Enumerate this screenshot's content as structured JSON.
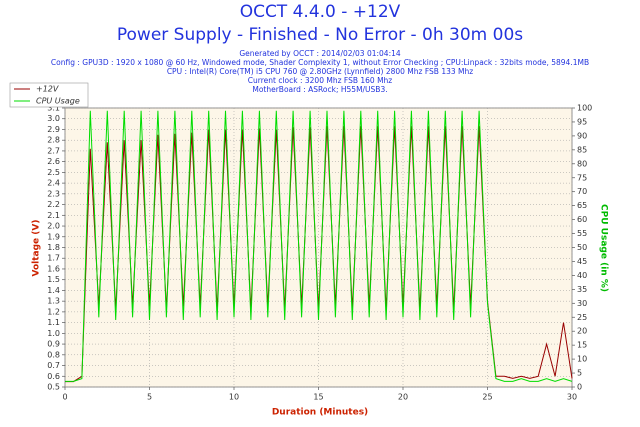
{
  "chart_data": {
    "type": "line",
    "title": "OCCT 4.4.0 - +12V",
    "subtitle": "Power Supply - Finished - No Error - 0h 30m 00s",
    "info_lines": [
      "Generated by OCCT : 2014/02/03 01:04:14",
      "Config : GPU3D : 1920 x 1080 @ 60 Hz, Windowed mode, Shader Complexity 1, without Error Checking ; CPU:Linpack : 32bits mode, 5894.1MB",
      "CPU : Intel(R) Core(TM) i5 CPU 760 @ 2.80GHz (Lynnfield) 2800 Mhz FSB 133 Mhz",
      "Current clock : 3200 Mhz FSB 160 Mhz",
      "MotherBoard : ASRock; H55M/USB3."
    ],
    "xlabel": "Duration (Minutes)",
    "ylabel": "Voltage (V)",
    "y2label": "CPU Usage (in %)",
    "x": [
      0,
      0.5,
      1,
      1.5,
      2,
      2.5,
      3,
      3.5,
      4,
      4.5,
      5,
      5.5,
      6,
      6.5,
      7,
      7.5,
      8,
      8.5,
      9,
      9.5,
      10,
      10.5,
      11,
      11.5,
      12,
      12.5,
      13,
      13.5,
      14,
      14.5,
      15,
      15.5,
      16,
      16.5,
      17,
      17.5,
      18,
      18.5,
      19,
      19.5,
      20,
      20.5,
      21,
      21.5,
      22,
      22.5,
      23,
      23.5,
      24,
      24.5,
      25,
      25.5,
      26,
      26.5,
      27,
      27.5,
      28,
      28.5,
      29,
      29.5,
      30
    ],
    "series": [
      {
        "name": "+12V",
        "color": "#990000",
        "values": [
          0.55,
          0.55,
          0.6,
          2.72,
          1.25,
          2.78,
          1.22,
          2.8,
          1.25,
          2.8,
          1.25,
          2.85,
          1.22,
          2.86,
          1.25,
          2.87,
          1.25,
          2.9,
          1.22,
          2.9,
          1.25,
          2.9,
          1.22,
          2.91,
          1.25,
          2.9,
          1.22,
          2.92,
          1.25,
          2.92,
          1.22,
          2.93,
          1.25,
          2.93,
          1.22,
          2.93,
          1.25,
          2.93,
          1.22,
          2.93,
          1.25,
          2.93,
          1.22,
          2.93,
          1.25,
          2.93,
          1.22,
          2.93,
          1.25,
          2.93,
          1.3,
          0.6,
          0.6,
          0.58,
          0.6,
          0.58,
          0.6,
          0.9,
          0.6,
          1.1,
          0.58
        ]
      },
      {
        "name": "CPU Usage",
        "color": "#00dd00",
        "axis": "y2",
        "values": [
          2,
          2,
          3,
          99,
          25,
          99,
          24,
          99,
          25,
          99,
          24,
          99,
          25,
          99,
          24,
          99,
          25,
          99,
          24,
          99,
          25,
          99,
          24,
          99,
          25,
          99,
          24,
          99,
          25,
          99,
          24,
          99,
          25,
          99,
          24,
          99,
          25,
          99,
          24,
          99,
          25,
          99,
          24,
          99,
          25,
          99,
          24,
          99,
          25,
          99,
          30,
          3,
          2,
          2,
          3,
          2,
          2,
          3,
          2,
          3,
          2
        ]
      }
    ],
    "xlim": [
      0,
      30
    ],
    "xticks": [
      0,
      5,
      10,
      15,
      20,
      25,
      30
    ],
    "ylim": [
      0.5,
      3.1
    ],
    "yticks": [
      0.5,
      0.6,
      0.7,
      0.8,
      0.9,
      {
        "value": 1,
        "label": "1.0"
      },
      1.1,
      1.2,
      1.3,
      1.4,
      1.5,
      1.6,
      1.7,
      1.8,
      1.9,
      {
        "value": 2,
        "label": "2.0"
      },
      2.1,
      2.2,
      2.3,
      2.4,
      2.5,
      2.6,
      2.7,
      2.8,
      2.9,
      {
        "value": 3,
        "label": "3.0"
      },
      3.1
    ],
    "y2lim": [
      0,
      100
    ],
    "y2ticks": [
      0,
      5,
      10,
      15,
      20,
      25,
      30,
      35,
      40,
      45,
      50,
      55,
      60,
      65,
      70,
      75,
      80,
      85,
      90,
      95,
      100
    ],
    "grid": true,
    "legend": "top-left"
  }
}
